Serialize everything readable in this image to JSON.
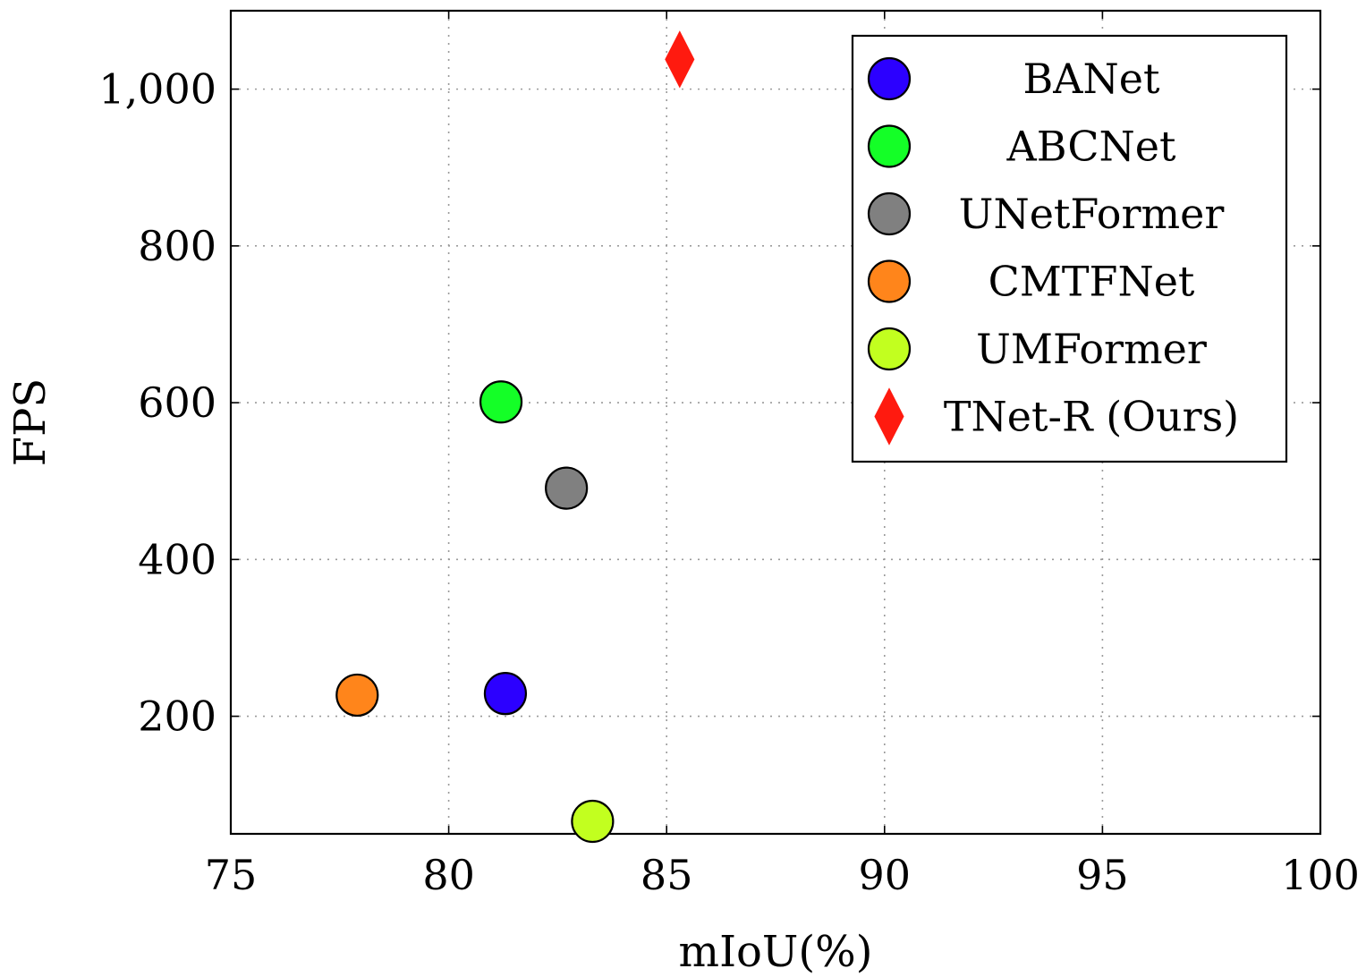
{
  "chart_data": {
    "type": "scatter",
    "title": "",
    "xlabel": "mIoU(%)",
    "ylabel": "FPS",
    "xlim": [
      75,
      100
    ],
    "ylim": [
      50,
      1100
    ],
    "xticks": [
      75,
      80,
      85,
      90,
      95,
      100
    ],
    "xtick_labels": [
      "75",
      "80",
      "85",
      "90",
      "95",
      "100"
    ],
    "yticks": [
      200,
      400,
      600,
      800,
      1000
    ],
    "ytick_labels": [
      "200",
      "400",
      "600",
      "800",
      "1,000"
    ],
    "grid": true,
    "legend_position": "top-right",
    "series": [
      {
        "name": "BANet",
        "marker": "circle",
        "color": "#2c00ff",
        "x": 81.3,
        "y": 229
      },
      {
        "name": "ABCNet",
        "marker": "circle",
        "color": "#14ff27",
        "x": 81.2,
        "y": 601
      },
      {
        "name": "UNetFormer",
        "marker": "circle",
        "color": "#808080",
        "x": 82.7,
        "y": 491
      },
      {
        "name": "CMTFNet",
        "marker": "circle",
        "color": "#ff851b",
        "x": 77.9,
        "y": 227
      },
      {
        "name": "UMFormer",
        "marker": "circle",
        "color": "#c2ff1f",
        "x": 83.3,
        "y": 66
      },
      {
        "name": "TNet-R (Ours)",
        "marker": "diamond",
        "color": "#ff1a0f",
        "x": 85.3,
        "y": 1038
      }
    ]
  }
}
